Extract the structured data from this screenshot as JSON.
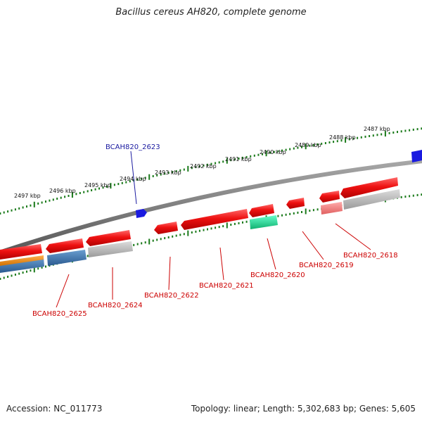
{
  "title": "Bacillus cereus AH820, complete genome",
  "footer": {
    "accession": "Accession: NC_011773",
    "summary": "Topology: linear; Length: 5,302,683 bp; Genes: 5,605"
  },
  "ruler": {
    "labels": [
      "2487 kbp",
      "2488 kbp",
      "2489 kbp",
      "2490 kbp",
      "2491 kbp",
      "2492 kbp",
      "2493 kbp",
      "2494 kbp",
      "2495 kbp",
      "2496 kbp",
      "2497 kbp"
    ]
  },
  "genes": [
    {
      "name": "BCAH820_2618",
      "strand": "reverse"
    },
    {
      "name": "BCAH820_2619",
      "strand": "reverse"
    },
    {
      "name": "BCAH820_2620",
      "strand": "reverse"
    },
    {
      "name": "BCAH820_2621",
      "strand": "reverse"
    },
    {
      "name": "BCAH820_2622",
      "strand": "reverse"
    },
    {
      "name": "BCAH820_2623",
      "strand": "forward"
    },
    {
      "name": "BCAH820_2624",
      "strand": "reverse"
    },
    {
      "name": "BCAH820_2625",
      "strand": "reverse"
    }
  ],
  "colors": {
    "cds": "#ee1111",
    "cds_light": "#ff8888",
    "forward_cds": "#1a1ae0",
    "backbone": "#7a7a7a",
    "ruler": "#1a7a1a",
    "grey_feature": "#b8b8b8",
    "blue_feature": "#3a78b0",
    "orange_feature": "#f08a10",
    "green_feature": "#22dd99",
    "red_label": "#cc0000",
    "blue_label": "#1a1aa0"
  }
}
